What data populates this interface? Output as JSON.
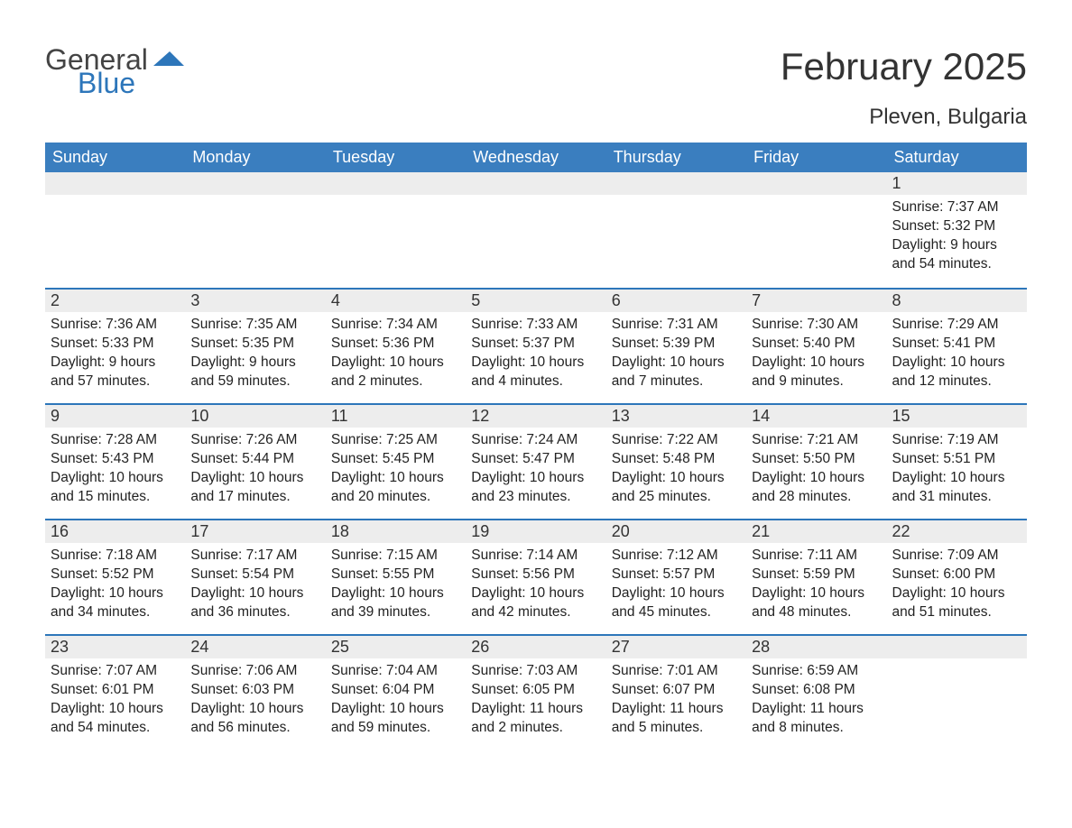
{
  "brand": {
    "general": "General",
    "blue": "Blue",
    "accent_color": "#2d76ba"
  },
  "title": "February 2025",
  "location": "Pleven, Bulgaria",
  "weekdays": [
    "Sunday",
    "Monday",
    "Tuesday",
    "Wednesday",
    "Thursday",
    "Friday",
    "Saturday"
  ],
  "colors": {
    "header_bg": "#3a7ebf",
    "header_text": "#ffffff",
    "row_divider": "#2d76ba",
    "daynum_bg": "#ededed",
    "body_bg": "#ffffff",
    "text": "#333333"
  },
  "fonts": {
    "title_size": 42,
    "location_size": 24,
    "weekday_size": 18,
    "daynum_size": 18,
    "body_size": 15.5
  },
  "labels": {
    "sunrise": "Sunrise:",
    "sunset": "Sunset:",
    "daylight": "Daylight:"
  },
  "weeks": [
    [
      null,
      null,
      null,
      null,
      null,
      null,
      {
        "n": "1",
        "sunrise": "7:37 AM",
        "sunset": "5:32 PM",
        "daylight": "9 hours and 54 minutes."
      }
    ],
    [
      {
        "n": "2",
        "sunrise": "7:36 AM",
        "sunset": "5:33 PM",
        "daylight": "9 hours and 57 minutes."
      },
      {
        "n": "3",
        "sunrise": "7:35 AM",
        "sunset": "5:35 PM",
        "daylight": "9 hours and 59 minutes."
      },
      {
        "n": "4",
        "sunrise": "7:34 AM",
        "sunset": "5:36 PM",
        "daylight": "10 hours and 2 minutes."
      },
      {
        "n": "5",
        "sunrise": "7:33 AM",
        "sunset": "5:37 PM",
        "daylight": "10 hours and 4 minutes."
      },
      {
        "n": "6",
        "sunrise": "7:31 AM",
        "sunset": "5:39 PM",
        "daylight": "10 hours and 7 minutes."
      },
      {
        "n": "7",
        "sunrise": "7:30 AM",
        "sunset": "5:40 PM",
        "daylight": "10 hours and 9 minutes."
      },
      {
        "n": "8",
        "sunrise": "7:29 AM",
        "sunset": "5:41 PM",
        "daylight": "10 hours and 12 minutes."
      }
    ],
    [
      {
        "n": "9",
        "sunrise": "7:28 AM",
        "sunset": "5:43 PM",
        "daylight": "10 hours and 15 minutes."
      },
      {
        "n": "10",
        "sunrise": "7:26 AM",
        "sunset": "5:44 PM",
        "daylight": "10 hours and 17 minutes."
      },
      {
        "n": "11",
        "sunrise": "7:25 AM",
        "sunset": "5:45 PM",
        "daylight": "10 hours and 20 minutes."
      },
      {
        "n": "12",
        "sunrise": "7:24 AM",
        "sunset": "5:47 PM",
        "daylight": "10 hours and 23 minutes."
      },
      {
        "n": "13",
        "sunrise": "7:22 AM",
        "sunset": "5:48 PM",
        "daylight": "10 hours and 25 minutes."
      },
      {
        "n": "14",
        "sunrise": "7:21 AM",
        "sunset": "5:50 PM",
        "daylight": "10 hours and 28 minutes."
      },
      {
        "n": "15",
        "sunrise": "7:19 AM",
        "sunset": "5:51 PM",
        "daylight": "10 hours and 31 minutes."
      }
    ],
    [
      {
        "n": "16",
        "sunrise": "7:18 AM",
        "sunset": "5:52 PM",
        "daylight": "10 hours and 34 minutes."
      },
      {
        "n": "17",
        "sunrise": "7:17 AM",
        "sunset": "5:54 PM",
        "daylight": "10 hours and 36 minutes."
      },
      {
        "n": "18",
        "sunrise": "7:15 AM",
        "sunset": "5:55 PM",
        "daylight": "10 hours and 39 minutes."
      },
      {
        "n": "19",
        "sunrise": "7:14 AM",
        "sunset": "5:56 PM",
        "daylight": "10 hours and 42 minutes."
      },
      {
        "n": "20",
        "sunrise": "7:12 AM",
        "sunset": "5:57 PM",
        "daylight": "10 hours and 45 minutes."
      },
      {
        "n": "21",
        "sunrise": "7:11 AM",
        "sunset": "5:59 PM",
        "daylight": "10 hours and 48 minutes."
      },
      {
        "n": "22",
        "sunrise": "7:09 AM",
        "sunset": "6:00 PM",
        "daylight": "10 hours and 51 minutes."
      }
    ],
    [
      {
        "n": "23",
        "sunrise": "7:07 AM",
        "sunset": "6:01 PM",
        "daylight": "10 hours and 54 minutes."
      },
      {
        "n": "24",
        "sunrise": "7:06 AM",
        "sunset": "6:03 PM",
        "daylight": "10 hours and 56 minutes."
      },
      {
        "n": "25",
        "sunrise": "7:04 AM",
        "sunset": "6:04 PM",
        "daylight": "10 hours and 59 minutes."
      },
      {
        "n": "26",
        "sunrise": "7:03 AM",
        "sunset": "6:05 PM",
        "daylight": "11 hours and 2 minutes."
      },
      {
        "n": "27",
        "sunrise": "7:01 AM",
        "sunset": "6:07 PM",
        "daylight": "11 hours and 5 minutes."
      },
      {
        "n": "28",
        "sunrise": "6:59 AM",
        "sunset": "6:08 PM",
        "daylight": "11 hours and 8 minutes."
      },
      null
    ]
  ]
}
